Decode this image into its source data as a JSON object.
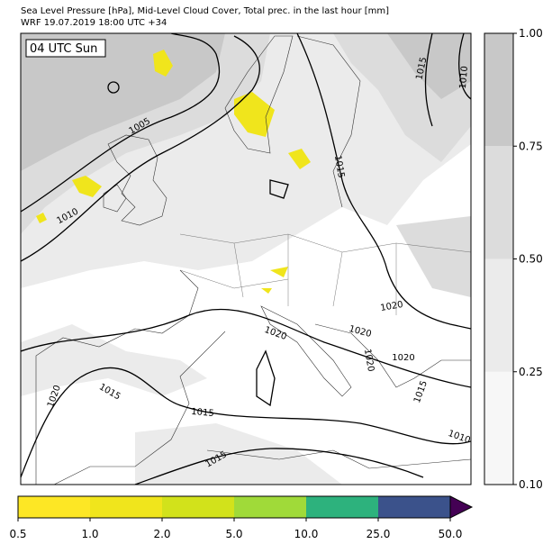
{
  "header": {
    "title": "Sea Level Pressure [hPa], Mid-Level Cloud Cover, Total prec. in the last hour [mm]",
    "subtitle": "WRF 19.07.2019 18:00 UTC +34"
  },
  "map": {
    "time_label": "04 UTC Sun",
    "contour_labels": [
      "1015",
      "1010",
      "1005",
      "1010",
      "1015",
      "1020",
      "1020",
      "1020",
      "1020",
      "1020",
      "1020",
      "1015",
      "1015",
      "1015",
      "1015",
      "1010"
    ]
  },
  "cloud_colorbar": {
    "ticks": [
      "0.10",
      "0.25",
      "0.50",
      "0.75",
      "1.00"
    ],
    "colors": [
      "#f7f7f7",
      "#ebebeb",
      "#dcdcdc",
      "#c8c8c8"
    ]
  },
  "precip_colorbar": {
    "ticks": [
      "0.5",
      "1.0",
      "2.0",
      "5.0",
      "10.0",
      "25.0",
      "50.0"
    ],
    "colors": [
      "#fde725",
      "#f0e51c",
      "#d2e21b",
      "#a0da39",
      "#2db27d",
      "#3b528b"
    ],
    "extend_color": "#440154"
  }
}
